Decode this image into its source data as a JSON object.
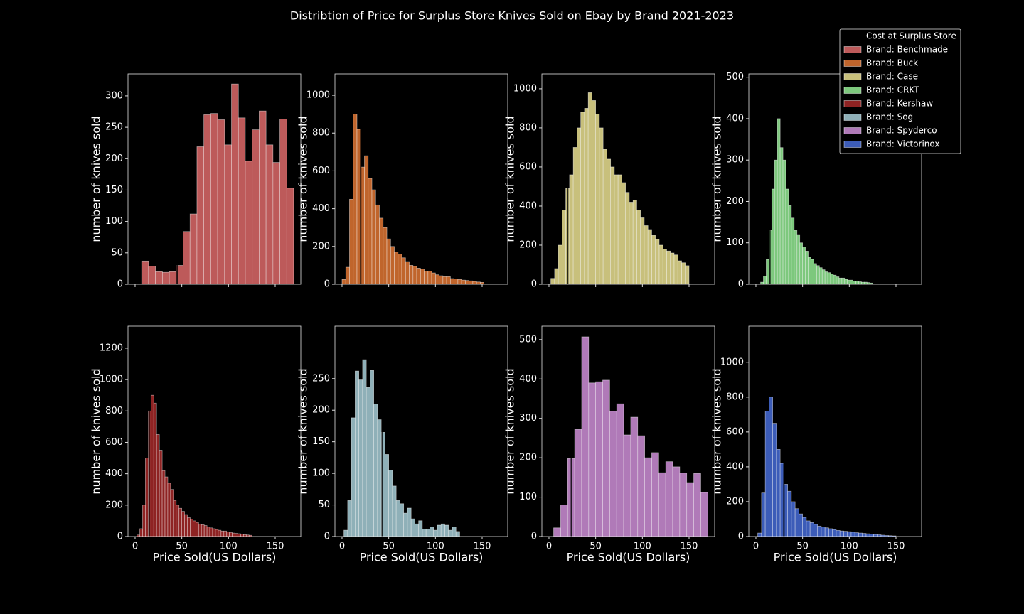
{
  "title": "Distribtion of Price for Surplus Store Knives Sold on Ebay by Brand 2021-2023",
  "legend": {
    "position": "upper right",
    "cost_label": "Cost at Surplus Store",
    "cost_color": "#000000"
  },
  "chart_data": [
    {
      "type": "histogram",
      "name": "Brand: Benchmade",
      "color": "#bd5a5a",
      "cost": 45,
      "bins": [
        7,
        14.4,
        21.8,
        29.2,
        36.6,
        44,
        51.4,
        58.8,
        66.2,
        73.6,
        81,
        88.4,
        95.8,
        103.2,
        110.6,
        118,
        125.4,
        132.8,
        140.2,
        147.6,
        155,
        162.4,
        169.8
      ],
      "values": [
        37,
        29,
        20,
        19,
        20,
        30,
        84,
        112,
        219,
        270,
        272,
        262,
        222,
        319,
        265,
        196,
        246,
        276,
        222,
        194,
        263,
        153
      ],
      "xlim": [
        -7.6,
        177.4
      ],
      "xticks": [
        0,
        50,
        100,
        150
      ],
      "ylim": [
        0,
        335
      ],
      "yticks": [
        0,
        50,
        100,
        150,
        200,
        250,
        300
      ],
      "ylabel": "number of knives sold"
    },
    {
      "type": "histogram",
      "name": "Brand: Buck",
      "color": "#c0652c",
      "cost": 20,
      "bins": [
        0,
        4,
        8,
        12,
        16,
        20,
        24,
        28,
        32,
        36,
        40,
        44,
        48,
        52,
        56,
        60,
        64,
        68,
        72,
        76,
        80,
        84,
        88,
        92,
        96,
        100,
        104,
        108,
        112,
        116,
        120,
        124,
        128,
        132,
        136,
        140,
        144,
        148,
        152
      ],
      "values": [
        25,
        90,
        450,
        900,
        820,
        620,
        680,
        560,
        500,
        420,
        350,
        300,
        240,
        200,
        170,
        160,
        140,
        120,
        100,
        95,
        85,
        80,
        70,
        70,
        60,
        50,
        45,
        40,
        40,
        30,
        28,
        25,
        22,
        20,
        18,
        15,
        12,
        10
      ],
      "xlim": [
        -7.6,
        177.4
      ],
      "xticks": [
        0,
        50,
        100,
        150
      ],
      "ylim": [
        0,
        1113
      ],
      "yticks": [
        0,
        200,
        400,
        600,
        800,
        1000
      ],
      "ylabel": "number of knives sold"
    },
    {
      "type": "histogram",
      "name": "Brand: Case",
      "color": "#c8c07c",
      "cost": 20,
      "bins": [
        2,
        6,
        10,
        14,
        18,
        22,
        26,
        30,
        34,
        38,
        42,
        46,
        50,
        54,
        58,
        62,
        66,
        70,
        74,
        78,
        82,
        86,
        90,
        94,
        98,
        102,
        106,
        110,
        114,
        118,
        122,
        126,
        130,
        134,
        138,
        142,
        146,
        150
      ],
      "values": [
        30,
        80,
        200,
        380,
        490,
        560,
        700,
        800,
        880,
        900,
        980,
        940,
        870,
        800,
        690,
        640,
        600,
        560,
        560,
        520,
        470,
        420,
        430,
        380,
        340,
        300,
        280,
        250,
        230,
        200,
        180,
        170,
        160,
        150,
        120,
        110,
        95
      ],
      "xlim": [
        -7.6,
        177.4
      ],
      "xticks": [
        0,
        50,
        100,
        150
      ],
      "ylim": [
        0,
        1076
      ],
      "yticks": [
        0,
        200,
        400,
        600,
        800,
        1000
      ],
      "ylabel": "number of knives sold"
    },
    {
      "type": "histogram",
      "name": "Brand: CRKT",
      "color": "#7dc87d",
      "cost": 15,
      "bins": [
        5,
        8,
        11,
        14,
        17,
        20,
        23,
        26,
        29,
        32,
        35,
        38,
        41,
        44,
        47,
        50,
        53,
        56,
        59,
        62,
        65,
        68,
        71,
        74,
        77,
        80,
        83,
        86,
        89,
        92,
        95,
        98,
        101,
        104,
        107,
        110,
        113,
        116,
        119,
        122,
        125
      ],
      "values": [
        5,
        20,
        60,
        130,
        230,
        300,
        400,
        330,
        300,
        230,
        190,
        160,
        130,
        120,
        100,
        90,
        80,
        65,
        60,
        50,
        45,
        40,
        35,
        30,
        28,
        25,
        22,
        18,
        15,
        15,
        12,
        10,
        10,
        8,
        8,
        6,
        5,
        5,
        4,
        3
      ],
      "xlim": [
        -7.6,
        177.4
      ],
      "xticks": [
        0,
        50,
        100,
        150
      ],
      "ylim": [
        0,
        508
      ],
      "yticks": [
        0,
        100,
        200,
        300,
        400,
        500
      ],
      "ylabel": "number of knives sold"
    },
    {
      "type": "histogram",
      "name": "Brand: Kershaw",
      "color": "#8e2323",
      "cost": 15,
      "bins": [
        2,
        5,
        8,
        11,
        14,
        17,
        20,
        23,
        26,
        29,
        32,
        35,
        38,
        41,
        44,
        47,
        50,
        53,
        56,
        59,
        62,
        65,
        68,
        71,
        74,
        77,
        80,
        83,
        86,
        89,
        92,
        95,
        98,
        101,
        104,
        107,
        110,
        113,
        116,
        119,
        122,
        125
      ],
      "values": [
        10,
        50,
        200,
        500,
        800,
        900,
        850,
        650,
        550,
        420,
        380,
        340,
        300,
        230,
        200,
        180,
        160,
        140,
        120,
        110,
        100,
        90,
        80,
        75,
        70,
        60,
        55,
        50,
        45,
        40,
        35,
        35,
        30,
        25,
        22,
        20,
        18,
        15,
        12,
        10,
        8
      ],
      "xlim": [
        -7.6,
        177.4
      ],
      "xticks": [
        0,
        50,
        100,
        150
      ],
      "ylim": [
        0,
        1340
      ],
      "yticks": [
        0,
        200,
        400,
        600,
        800,
        1000,
        1200
      ],
      "ylabel": "number of knives sold",
      "xlabel": "Price Sold(US Dollars)"
    },
    {
      "type": "histogram",
      "name": "Brand: Sog",
      "color": "#8fb0b8",
      "cost": 43,
      "bins": [
        2,
        6,
        10,
        14,
        18,
        22,
        26,
        30,
        34,
        38,
        42,
        46,
        50,
        54,
        58,
        62,
        66,
        70,
        74,
        78,
        82,
        86,
        90,
        94,
        98,
        102,
        106,
        110,
        114,
        118,
        122,
        126
      ],
      "values": [
        10,
        57,
        188,
        262,
        248,
        280,
        236,
        263,
        210,
        185,
        165,
        130,
        105,
        80,
        57,
        52,
        37,
        45,
        28,
        20,
        25,
        12,
        12,
        15,
        10,
        18,
        20,
        18,
        10,
        15,
        8
      ],
      "xlim": [
        -7.6,
        177.4
      ],
      "xticks": [
        0,
        50,
        100,
        150
      ],
      "ylim": [
        0,
        333
      ],
      "yticks": [
        0,
        50,
        100,
        150,
        200,
        250
      ],
      "ylabel": "number of knives sold",
      "xlabel": "Price Sold(US Dollars)"
    },
    {
      "type": "histogram",
      "name": "Brand: Spyderco",
      "color": "#b07ab8",
      "cost": 24,
      "bins": [
        5,
        12.5,
        20,
        27.5,
        35,
        42.5,
        50,
        57.5,
        65,
        72.5,
        80,
        87.5,
        95,
        102.5,
        110,
        117.5,
        125,
        132.5,
        140,
        147.5,
        155,
        162.5,
        170
      ],
      "values": [
        22,
        80,
        198,
        272,
        507,
        390,
        393,
        397,
        318,
        337,
        258,
        303,
        256,
        200,
        213,
        162,
        190,
        177,
        161,
        137,
        160,
        112
      ],
      "xlim": [
        -7.6,
        177.4
      ],
      "xticks": [
        0,
        50,
        100,
        150
      ],
      "ylim": [
        0,
        534
      ],
      "yticks": [
        0,
        100,
        200,
        300,
        400,
        500
      ],
      "ylabel": "number of knives sold",
      "xlabel": "Price Sold(US Dollars)"
    },
    {
      "type": "histogram",
      "name": "Brand: Victorinox",
      "color": "#3c5cb8",
      "cost": 30,
      "bins": [
        2,
        6,
        10,
        14,
        18,
        22,
        26,
        30,
        34,
        38,
        42,
        46,
        50,
        54,
        58,
        62,
        66,
        70,
        74,
        78,
        82,
        86,
        90,
        94,
        98,
        102,
        106,
        110,
        114,
        118,
        122,
        126,
        130,
        134,
        138,
        142,
        146,
        150
      ],
      "values": [
        20,
        250,
        720,
        800,
        650,
        500,
        420,
        300,
        260,
        200,
        160,
        130,
        110,
        90,
        80,
        70,
        60,
        55,
        50,
        45,
        40,
        35,
        32,
        30,
        28,
        25,
        22,
        20,
        18,
        16,
        14,
        12,
        10,
        8,
        6,
        5,
        4
      ],
      "xlim": [
        -7.6,
        177.4
      ],
      "xticks": [
        0,
        50,
        100,
        150
      ],
      "ylim": [
        0,
        1207
      ],
      "yticks": [
        0,
        200,
        400,
        600,
        800,
        1000
      ],
      "ylabel": "number of knives sold",
      "xlabel": "Price Sold(US Dollars)"
    }
  ]
}
